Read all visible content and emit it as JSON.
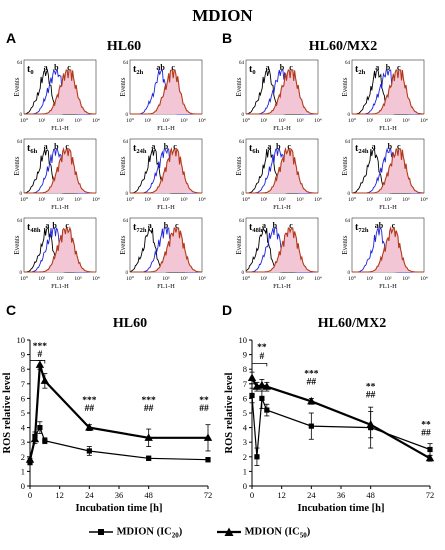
{
  "main_title": "MDION",
  "panels": {
    "A": {
      "label": "A",
      "title": "HL60"
    },
    "B": {
      "label": "B",
      "title": "HL60/MX2"
    },
    "C": {
      "label": "C",
      "title": "HL60"
    },
    "D": {
      "label": "D",
      "title": "HL60/MX2"
    }
  },
  "histogram_common": {
    "ylabel": "Events",
    "xlabel": "FL1-H",
    "x_ticks": [
      "10⁰",
      "10¹",
      "10²",
      "10³",
      "10⁴"
    ],
    "y_ticks": [
      "0",
      "64"
    ],
    "colors": {
      "a": "#000000",
      "b": "#1f23d6",
      "c": "#b33a1a",
      "c_fill": "#f3c6d6"
    }
  },
  "histograms": {
    "A": [
      {
        "time_base": "t",
        "time_sub": "0",
        "letters": [
          "a",
          "b",
          "c"
        ],
        "peaks": [
          1.2,
          1.8,
          2.5
        ]
      },
      {
        "time_base": "t",
        "time_sub": "2h",
        "letters": [
          "ab",
          "c"
        ],
        "peaks": [
          1.7,
          2.4
        ]
      },
      {
        "time_base": "t",
        "time_sub": "6h",
        "letters": [
          "a",
          "b",
          "c"
        ],
        "peaks": [
          1.2,
          1.8,
          2.4
        ]
      },
      {
        "time_base": "t",
        "time_sub": "24h",
        "letters": [
          "a",
          "b",
          "c"
        ],
        "peaks": [
          1.3,
          2.0,
          2.5
        ]
      },
      {
        "time_base": "t",
        "time_sub": "48h",
        "letters": [
          "a",
          "b",
          "c"
        ],
        "peaks": [
          1.3,
          1.7,
          2.4
        ]
      },
      {
        "time_base": "t",
        "time_sub": "72h",
        "letters": [
          "a",
          "b",
          "c"
        ],
        "peaks": [
          1.1,
          2.0,
          2.6
        ]
      }
    ],
    "B": [
      {
        "time_base": "t",
        "time_sub": "0",
        "letters": [
          "a",
          "b",
          "c"
        ],
        "peaks": [
          1.2,
          2.0,
          2.5
        ]
      },
      {
        "time_base": "t",
        "time_sub": "2h",
        "letters": [
          "a",
          "b",
          "c"
        ],
        "peaks": [
          1.4,
          2.0,
          2.6
        ]
      },
      {
        "time_base": "t",
        "time_sub": "6h",
        "letters": [
          "a",
          "b",
          "c"
        ],
        "peaks": [
          1.3,
          1.8,
          2.4
        ]
      },
      {
        "time_base": "t",
        "time_sub": "24h",
        "letters": [
          "a",
          "b",
          "c"
        ],
        "peaks": [
          1.2,
          2.1,
          2.6
        ]
      },
      {
        "time_base": "t",
        "time_sub": "48h",
        "letters": [
          "a",
          "b",
          "c"
        ],
        "peaks": [
          1.0,
          1.6,
          2.5
        ]
      },
      {
        "time_base": "t",
        "time_sub": "72h",
        "letters": [
          "ab",
          "c"
        ],
        "peaks": [
          1.5,
          2.3
        ]
      }
    ]
  },
  "chart_data": [
    {
      "type": "line",
      "panel": "C",
      "title": "HL60",
      "xlabel": "Incubation time [h]",
      "ylabel": "ROS relative level",
      "xlim": [
        0,
        72
      ],
      "ylim": [
        0,
        10
      ],
      "x_ticks": [
        0,
        12,
        24,
        36,
        48,
        72
      ],
      "y_ticks": [
        0,
        1,
        2,
        3,
        4,
        5,
        6,
        7,
        8,
        9,
        10
      ],
      "series": [
        {
          "name": "MDION (IC20)",
          "marker": "square",
          "x": [
            0,
            2,
            4,
            6,
            24,
            48,
            72
          ],
          "y": [
            1.6,
            3.4,
            4.0,
            3.1,
            2.4,
            1.9,
            1.8
          ],
          "err": [
            0.1,
            0.3,
            0.4,
            0.2,
            0.3,
            0.15,
            0.15
          ]
        },
        {
          "name": "MDION (IC50)",
          "marker": "triangle",
          "x": [
            0,
            2,
            4,
            6,
            24,
            48,
            72
          ],
          "y": [
            1.8,
            3.2,
            8.3,
            7.2,
            4.0,
            3.3,
            3.3
          ],
          "err": [
            0.1,
            0.3,
            0.3,
            0.5,
            0.2,
            0.6,
            0.9
          ]
        }
      ],
      "annotations": [
        {
          "x": 4,
          "y": 9.4,
          "text": "***"
        },
        {
          "x": 4,
          "y": 8.85,
          "text": "#"
        },
        {
          "x": 24,
          "y": 5.7,
          "text": "***"
        },
        {
          "x": 24,
          "y": 5.15,
          "text": "##"
        },
        {
          "x": 48,
          "y": 5.7,
          "text": "***"
        },
        {
          "x": 48,
          "y": 5.15,
          "text": "##"
        },
        {
          "x": 72,
          "y": 5.7,
          "text": "**"
        },
        {
          "x": 72,
          "y": 5.15,
          "text": "##"
        }
      ],
      "bracket": {
        "x_from": 0,
        "x_to": 6,
        "y": 8.6
      }
    },
    {
      "type": "line",
      "panel": "D",
      "title": "HL60/MX2",
      "xlabel": "Incubation time [h]",
      "ylabel": "ROS relative level",
      "xlim": [
        0,
        72
      ],
      "ylim": [
        0,
        10
      ],
      "x_ticks": [
        0,
        12,
        24,
        36,
        48,
        72
      ],
      "y_ticks": [
        0,
        1,
        2,
        3,
        4,
        5,
        6,
        7,
        8,
        9,
        10
      ],
      "series": [
        {
          "name": "MDION (IC20)",
          "marker": "square",
          "x": [
            0,
            2,
            4,
            6,
            24,
            48,
            72
          ],
          "y": [
            6.2,
            2.0,
            6.0,
            5.2,
            4.1,
            4.0,
            2.5
          ],
          "err": [
            0.5,
            0.6,
            0.7,
            0.4,
            0.9,
            1.4,
            0.4
          ]
        },
        {
          "name": "MDION (IC50)",
          "marker": "triangle",
          "x": [
            0,
            2,
            4,
            6,
            24,
            48,
            72
          ],
          "y": [
            7.4,
            6.8,
            6.9,
            6.8,
            5.8,
            4.2,
            1.9
          ],
          "err": [
            0.4,
            0.3,
            0.4,
            0.3,
            0.2,
            0.9,
            0.2
          ]
        }
      ],
      "annotations": [
        {
          "x": 4,
          "y": 9.3,
          "text": "**"
        },
        {
          "x": 4,
          "y": 8.7,
          "text": "#"
        },
        {
          "x": 24,
          "y": 7.5,
          "text": "***"
        },
        {
          "x": 24,
          "y": 6.95,
          "text": "##"
        },
        {
          "x": 48,
          "y": 6.6,
          "text": "**"
        },
        {
          "x": 48,
          "y": 6.05,
          "text": "##"
        },
        {
          "x": 72,
          "y": 4.0,
          "text": "**"
        },
        {
          "x": 72,
          "y": 3.45,
          "text": "##"
        }
      ],
      "bracket": {
        "x_from": 0,
        "x_to": 6,
        "y": 8.4
      }
    }
  ],
  "legend": {
    "items": [
      {
        "name": "MDION (IC",
        "sub": "20",
        "close": ")",
        "marker": "square"
      },
      {
        "name": "MDION (IC",
        "sub": "50",
        "close": ")",
        "marker": "triangle"
      }
    ]
  }
}
